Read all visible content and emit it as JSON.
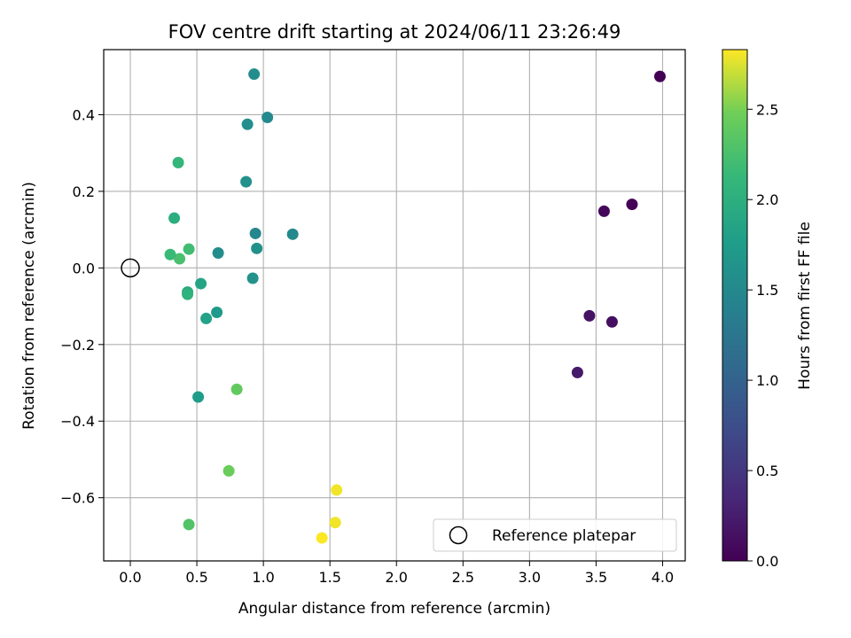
{
  "chart_data": {
    "type": "scatter",
    "title": "FOV centre drift starting at 2024/06/11 23:26:49",
    "xlabel": "Angular distance from reference (arcmin)",
    "ylabel": "Rotation from reference (arcmin)",
    "xlim": [
      -0.2,
      4.17
    ],
    "ylim": [
      -0.765,
      0.57
    ],
    "xticks": [
      0.0,
      0.5,
      1.0,
      1.5,
      2.0,
      2.5,
      3.0,
      3.5,
      4.0
    ],
    "xtick_labels": [
      "0.0",
      "0.5",
      "1.0",
      "1.5",
      "2.0",
      "2.5",
      "3.0",
      "3.5",
      "4.0"
    ],
    "yticks": [
      -0.6,
      -0.4,
      -0.2,
      0.0,
      0.2,
      0.4
    ],
    "ytick_labels": [
      "−0.6",
      "−0.4",
      "−0.2",
      "0.0",
      "0.2",
      "0.4"
    ],
    "grid": true,
    "legend": {
      "placement": "lower-right",
      "entries": [
        "Reference platepar"
      ]
    },
    "reference_point": {
      "x": 0.0,
      "y": 0.0
    },
    "colorbar": {
      "label": "Hours from first FF file",
      "colormap": "viridis",
      "range": [
        0.0,
        2.83
      ],
      "ticks": [
        0.0,
        0.5,
        1.0,
        1.5,
        2.0,
        2.5
      ],
      "tick_labels": [
        "0.0",
        "0.5",
        "1.0",
        "1.5",
        "2.0",
        "2.5"
      ]
    },
    "points": [
      {
        "x": 3.98,
        "y": 0.5,
        "c": 0.0
      },
      {
        "x": 3.77,
        "y": 0.166,
        "c": 0.02
      },
      {
        "x": 3.56,
        "y": 0.148,
        "c": 0.05
      },
      {
        "x": 3.62,
        "y": -0.141,
        "c": 0.12
      },
      {
        "x": 3.45,
        "y": -0.125,
        "c": 0.15
      },
      {
        "x": 3.36,
        "y": -0.273,
        "c": 0.22
      },
      {
        "x": 0.93,
        "y": 0.506,
        "c": 1.55
      },
      {
        "x": 1.03,
        "y": 0.393,
        "c": 1.52
      },
      {
        "x": 0.88,
        "y": 0.375,
        "c": 1.57
      },
      {
        "x": 0.87,
        "y": 0.225,
        "c": 1.6
      },
      {
        "x": 1.22,
        "y": 0.088,
        "c": 1.5
      },
      {
        "x": 0.94,
        "y": 0.09,
        "c": 1.48
      },
      {
        "x": 0.95,
        "y": 0.051,
        "c": 1.6
      },
      {
        "x": 0.92,
        "y": -0.027,
        "c": 1.62
      },
      {
        "x": 0.66,
        "y": 0.039,
        "c": 1.55
      },
      {
        "x": 0.65,
        "y": -0.116,
        "c": 1.72
      },
      {
        "x": 0.57,
        "y": -0.132,
        "c": 1.82
      },
      {
        "x": 0.53,
        "y": -0.041,
        "c": 1.85
      },
      {
        "x": 0.51,
        "y": -0.337,
        "c": 1.75
      },
      {
        "x": 0.43,
        "y": -0.063,
        "c": 1.92
      },
      {
        "x": 0.43,
        "y": -0.069,
        "c": 2.05
      },
      {
        "x": 0.44,
        "y": 0.049,
        "c": 2.2
      },
      {
        "x": 0.37,
        "y": 0.024,
        "c": 2.25
      },
      {
        "x": 0.3,
        "y": 0.035,
        "c": 2.15
      },
      {
        "x": 0.33,
        "y": 0.13,
        "c": 2.0
      },
      {
        "x": 0.36,
        "y": 0.275,
        "c": 2.1
      },
      {
        "x": 0.8,
        "y": -0.317,
        "c": 2.4
      },
      {
        "x": 0.74,
        "y": -0.53,
        "c": 2.45
      },
      {
        "x": 0.44,
        "y": -0.67,
        "c": 2.3
      },
      {
        "x": 1.55,
        "y": -0.58,
        "c": 2.8
      },
      {
        "x": 1.54,
        "y": -0.665,
        "c": 2.8
      },
      {
        "x": 1.44,
        "y": -0.705,
        "c": 2.83
      }
    ]
  }
}
